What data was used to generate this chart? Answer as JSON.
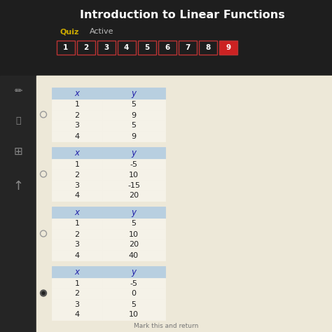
{
  "title": "Introduction to Linear Functions",
  "subtitle_left": "Quiz",
  "subtitle_right": "Active",
  "nav_numbers": [
    "1",
    "2",
    "3",
    "4",
    "5",
    "6",
    "7",
    "8",
    "9"
  ],
  "nav_selected": 9,
  "tables": [
    {
      "x": [
        1,
        2,
        3,
        4
      ],
      "y": [
        "5",
        "9",
        "5",
        "9"
      ],
      "selected": false
    },
    {
      "x": [
        1,
        2,
        3,
        4
      ],
      "y": [
        "-5",
        "10",
        "-15",
        "20"
      ],
      "selected": false
    },
    {
      "x": [
        1,
        2,
        3,
        4
      ],
      "y": [
        "5",
        "10",
        "20",
        "40"
      ],
      "selected": false
    },
    {
      "x": [
        1,
        2,
        3,
        4
      ],
      "y": [
        "-5",
        "0",
        "5",
        "10"
      ],
      "selected": true
    }
  ],
  "bg_color": "#1e1e1e",
  "content_bg": "#ede8d8",
  "table_header_color": "#b8cfe0",
  "table_row_color": "#f5f2e8",
  "table_border_color": "#999999",
  "nav_border_color": "#bb3333",
  "nav_selected_color": "#cc2222",
  "nav_text_color": "#ffffff",
  "title_color": "#ffffff",
  "quiz_color": "#ccaa00",
  "active_color": "#bbbbbb",
  "sidebar_color": "#252525",
  "table_header_text_color": "#2222aa",
  "table_data_text_color": "#222222"
}
